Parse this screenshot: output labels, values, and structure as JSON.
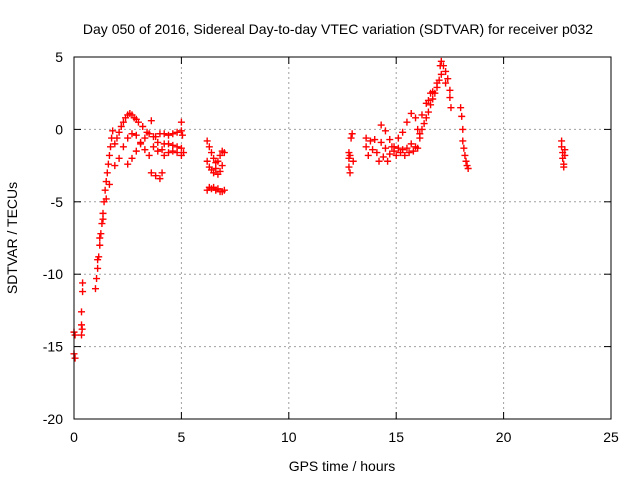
{
  "chart_data": {
    "type": "scatter",
    "title": "Day 050 of 2016, Sidereal Day-to-day VTEC variation (SDTVAR) for receiver p032",
    "xlabel": "GPS time / hours",
    "ylabel": "SDTVAR / TECUs",
    "xlim": [
      0,
      25
    ],
    "ylim": [
      -20,
      5
    ],
    "xticks": [
      0,
      5,
      10,
      15,
      20,
      25
    ],
    "yticks": [
      -20,
      -15,
      -10,
      -5,
      0,
      5
    ],
    "xtick_labels": [
      "0",
      "5",
      "10",
      "15",
      "20",
      "25"
    ],
    "ytick_labels": [
      "-20",
      "-15",
      "-10",
      "-5",
      "0",
      "5"
    ],
    "grid": true,
    "marker": "+",
    "color": "#ff0000",
    "series": [
      {
        "name": "SDTVAR",
        "points": [
          [
            0.0,
            -14.0
          ],
          [
            0.0,
            -15.5
          ],
          [
            0.05,
            -15.8
          ],
          [
            0.05,
            -14.2
          ],
          [
            0.35,
            -13.5
          ],
          [
            0.35,
            -14.2
          ],
          [
            0.35,
            -12.6
          ],
          [
            0.38,
            -13.8
          ],
          [
            0.4,
            -11.2
          ],
          [
            0.4,
            -10.6
          ],
          [
            1.0,
            -11.0
          ],
          [
            1.05,
            -10.3
          ],
          [
            1.1,
            -9.6
          ],
          [
            1.15,
            -8.8
          ],
          [
            1.2,
            -8.0
          ],
          [
            1.25,
            -7.2
          ],
          [
            1.3,
            -6.5
          ],
          [
            1.35,
            -5.8
          ],
          [
            1.4,
            -5.0
          ],
          [
            1.45,
            -4.2
          ],
          [
            1.5,
            -3.6
          ],
          [
            1.55,
            -3.0
          ],
          [
            1.6,
            -2.4
          ],
          [
            1.65,
            -1.8
          ],
          [
            1.7,
            -1.2
          ],
          [
            1.75,
            -0.6
          ],
          [
            1.8,
            -0.1
          ],
          [
            1.1,
            -9.0
          ],
          [
            1.2,
            -7.5
          ],
          [
            1.35,
            -6.2
          ],
          [
            1.5,
            -4.8
          ],
          [
            1.65,
            -3.8
          ],
          [
            1.9,
            -1.0
          ],
          [
            2.0,
            -0.6
          ],
          [
            2.1,
            -0.2
          ],
          [
            2.2,
            0.2
          ],
          [
            2.3,
            0.5
          ],
          [
            2.4,
            0.8
          ],
          [
            2.5,
            1.0
          ],
          [
            2.6,
            1.1
          ],
          [
            2.7,
            1.0
          ],
          [
            2.8,
            0.8
          ],
          [
            2.9,
            0.7
          ],
          [
            3.0,
            0.5
          ],
          [
            3.2,
            0.2
          ],
          [
            3.4,
            -0.2
          ],
          [
            3.6,
            0.6
          ],
          [
            3.8,
            -0.5
          ],
          [
            1.9,
            -2.5
          ],
          [
            2.1,
            -2.0
          ],
          [
            2.3,
            -1.2
          ],
          [
            2.5,
            -0.6
          ],
          [
            2.7,
            -0.3
          ],
          [
            2.9,
            -0.4
          ],
          [
            3.1,
            -0.9
          ],
          [
            3.3,
            -1.4
          ],
          [
            3.5,
            -1.8
          ],
          [
            2.5,
            -2.4
          ],
          [
            2.7,
            -2.0
          ],
          [
            2.9,
            -1.5
          ],
          [
            3.1,
            -1.0
          ],
          [
            3.3,
            -0.6
          ],
          [
            3.5,
            -0.3
          ],
          [
            3.7,
            -0.5
          ],
          [
            3.9,
            -0.9
          ],
          [
            3.6,
            -3.0
          ],
          [
            3.8,
            -3.2
          ],
          [
            4.0,
            -3.4
          ],
          [
            4.1,
            -3.0
          ],
          [
            3.7,
            -1.2
          ],
          [
            3.9,
            -1.5
          ],
          [
            4.1,
            -1.4
          ],
          [
            4.2,
            -1.0
          ],
          [
            4.0,
            -0.3
          ],
          [
            4.2,
            -0.3
          ],
          [
            4.4,
            -0.4
          ],
          [
            4.6,
            -0.3
          ],
          [
            4.8,
            -0.2
          ],
          [
            5.0,
            -0.1
          ],
          [
            4.4,
            -1.0
          ],
          [
            4.6,
            -1.1
          ],
          [
            4.8,
            -1.2
          ],
          [
            5.0,
            -1.3
          ],
          [
            4.2,
            -1.8
          ],
          [
            4.4,
            -1.6
          ],
          [
            4.6,
            -1.5
          ],
          [
            4.8,
            -1.6
          ],
          [
            5.0,
            -1.8
          ],
          [
            5.0,
            0.5
          ],
          [
            5.05,
            -0.4
          ],
          [
            5.1,
            -1.6
          ],
          [
            6.2,
            -0.8
          ],
          [
            6.3,
            -1.2
          ],
          [
            6.4,
            -1.6
          ],
          [
            6.5,
            -2.0
          ],
          [
            6.6,
            -2.3
          ],
          [
            6.7,
            -2.2
          ],
          [
            6.8,
            -1.8
          ],
          [
            6.9,
            -1.5
          ],
          [
            7.0,
            -1.6
          ],
          [
            6.2,
            -2.2
          ],
          [
            6.3,
            -2.6
          ],
          [
            6.4,
            -2.8
          ],
          [
            6.5,
            -3.0
          ],
          [
            6.6,
            -2.7
          ],
          [
            6.7,
            -3.1
          ],
          [
            6.8,
            -2.9
          ],
          [
            6.9,
            -2.5
          ],
          [
            6.2,
            -4.2
          ],
          [
            6.3,
            -4.0
          ],
          [
            6.4,
            -4.1
          ],
          [
            6.5,
            -4.0
          ],
          [
            6.6,
            -4.2
          ],
          [
            6.7,
            -4.1
          ],
          [
            6.8,
            -4.3
          ],
          [
            6.9,
            -4.3
          ],
          [
            7.0,
            -4.2
          ],
          [
            12.8,
            -1.6
          ],
          [
            12.8,
            -2.0
          ],
          [
            12.8,
            -2.6
          ],
          [
            12.85,
            -3.0
          ],
          [
            12.85,
            -1.8
          ],
          [
            12.9,
            -0.6
          ],
          [
            12.95,
            -0.3
          ],
          [
            13.0,
            -2.2
          ],
          [
            13.6,
            -0.6
          ],
          [
            13.6,
            -1.2
          ],
          [
            13.7,
            -1.8
          ],
          [
            13.8,
            -0.8
          ],
          [
            13.9,
            -1.4
          ],
          [
            14.0,
            -0.7
          ],
          [
            14.1,
            -1.6
          ],
          [
            14.2,
            -2.2
          ],
          [
            14.3,
            -0.9
          ],
          [
            14.4,
            -1.9
          ],
          [
            14.5,
            -1.3
          ],
          [
            14.6,
            -2.2
          ],
          [
            14.7,
            -1.7
          ],
          [
            14.8,
            -1.2
          ],
          [
            14.9,
            -1.5
          ],
          [
            15.0,
            -1.8
          ],
          [
            15.1,
            -1.3
          ],
          [
            15.2,
            -1.6
          ],
          [
            15.3,
            -1.4
          ],
          [
            15.4,
            -1.8
          ],
          [
            15.5,
            -1.3
          ],
          [
            15.6,
            -1.6
          ],
          [
            15.7,
            -1.0
          ],
          [
            15.8,
            -1.5
          ],
          [
            15.9,
            -1.2
          ],
          [
            16.0,
            -1.3
          ],
          [
            16.1,
            -0.6
          ],
          [
            14.3,
            0.3
          ],
          [
            14.5,
            -0.1
          ],
          [
            14.7,
            -0.7
          ],
          [
            14.9,
            -1.2
          ],
          [
            15.1,
            -0.6
          ],
          [
            15.3,
            -0.2
          ],
          [
            15.5,
            0.5
          ],
          [
            15.7,
            1.1
          ],
          [
            15.9,
            0.8
          ],
          [
            16.0,
            0.0
          ],
          [
            16.1,
            -0.3
          ],
          [
            16.2,
            0.0
          ],
          [
            16.3,
            0.4
          ],
          [
            16.4,
            0.8
          ],
          [
            16.5,
            1.2
          ],
          [
            16.6,
            1.7
          ],
          [
            16.7,
            2.1
          ],
          [
            16.8,
            2.5
          ],
          [
            16.9,
            2.9
          ],
          [
            17.0,
            3.4
          ],
          [
            17.05,
            4.4
          ],
          [
            17.1,
            4.7
          ],
          [
            17.2,
            4.4
          ],
          [
            17.3,
            4.0
          ],
          [
            17.4,
            3.5
          ],
          [
            17.5,
            2.7
          ],
          [
            17.55,
            1.5
          ],
          [
            16.5,
            2.0
          ],
          [
            16.7,
            2.6
          ],
          [
            16.9,
            3.2
          ],
          [
            17.1,
            3.8
          ],
          [
            17.3,
            3.2
          ],
          [
            17.5,
            2.2
          ],
          [
            16.2,
            1.0
          ],
          [
            16.4,
            1.8
          ],
          [
            16.6,
            2.5
          ],
          [
            18.0,
            1.5
          ],
          [
            18.05,
            0.9
          ],
          [
            18.1,
            0.0
          ],
          [
            18.1,
            -0.8
          ],
          [
            18.15,
            -1.3
          ],
          [
            18.2,
            -1.8
          ],
          [
            18.25,
            -2.2
          ],
          [
            18.3,
            -2.5
          ],
          [
            18.35,
            -2.7
          ],
          [
            22.7,
            -0.8
          ],
          [
            22.7,
            -1.2
          ],
          [
            22.75,
            -1.6
          ],
          [
            22.75,
            -2.0
          ],
          [
            22.8,
            -2.4
          ],
          [
            22.8,
            -2.6
          ],
          [
            22.85,
            -1.4
          ],
          [
            22.85,
            -1.8
          ]
        ]
      }
    ]
  }
}
